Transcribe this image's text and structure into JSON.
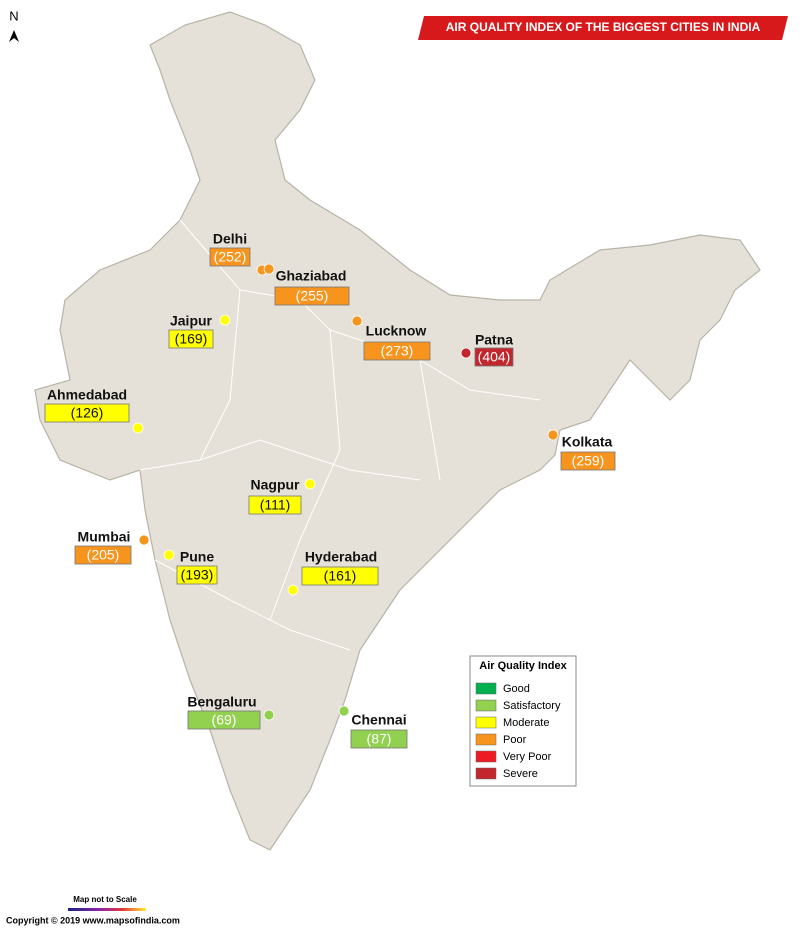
{
  "title": "AIR QUALITY INDEX OF THE BIGGEST CITIES IN INDIA",
  "north": "N",
  "scale_note": "Map not to Scale",
  "copyright": "Copyright © 2019 www.mapsofindia.com",
  "cities": [
    {
      "name": "Delhi",
      "aqi": "(252)",
      "color": "#f7941d"
    },
    {
      "name": "Ghaziabad",
      "aqi": "(255)",
      "color": "#f7941d"
    },
    {
      "name": "Jaipur",
      "aqi": "(169)",
      "color": "#ffff00"
    },
    {
      "name": "Lucknow",
      "aqi": "(273)",
      "color": "#f7941d"
    },
    {
      "name": "Patna",
      "aqi": "(404)",
      "color": "#c1272d"
    },
    {
      "name": "Ahmedabad",
      "aqi": "(126)",
      "color": "#ffff00"
    },
    {
      "name": "Kolkata",
      "aqi": "(259)",
      "color": "#f7941d"
    },
    {
      "name": "Nagpur",
      "aqi": "(111)",
      "color": "#ffff00"
    },
    {
      "name": "Mumbai",
      "aqi": "(205)",
      "color": "#f7941d"
    },
    {
      "name": "Pune",
      "aqi": "(193)",
      "color": "#ffff00"
    },
    {
      "name": "Hyderabad",
      "aqi": "(161)",
      "color": "#ffff00"
    },
    {
      "name": "Bengaluru",
      "aqi": "(69)",
      "color": "#92d050"
    },
    {
      "name": "Chennai",
      "aqi": "(87)",
      "color": "#92d050"
    }
  ],
  "legend": {
    "title": "Air Quality Index",
    "items": [
      {
        "name": "Good",
        "color": "#00b050"
      },
      {
        "name": "Satisfactory",
        "color": "#92d050"
      },
      {
        "name": "Moderate",
        "color": "#ffff00"
      },
      {
        "name": "Poor",
        "color": "#f7941d"
      },
      {
        "name": "Very Poor",
        "color": "#ed1c24"
      },
      {
        "name": "Severe",
        "color": "#c1272d"
      }
    ]
  }
}
